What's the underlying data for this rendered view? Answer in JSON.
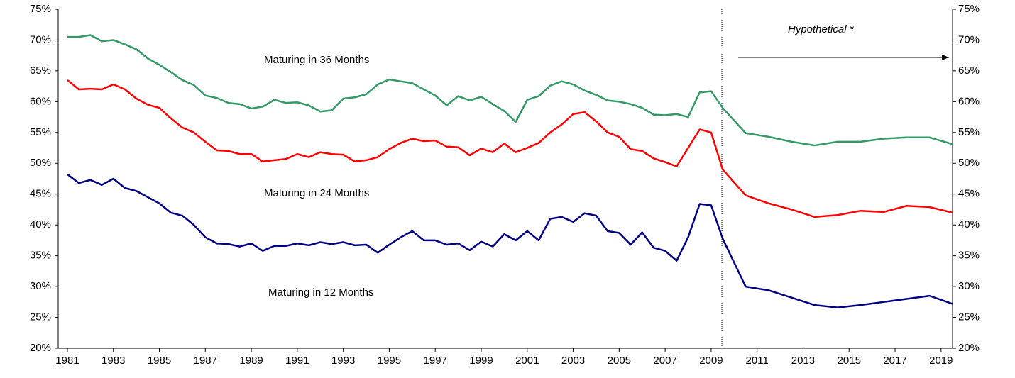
{
  "chart_data": {
    "type": "line",
    "annotations": [
      "Maturing in 36 Months",
      "Maturing in 24 Months",
      "Maturing in 12 Months",
      "Hypothetical *"
    ],
    "x": [
      1981,
      1981.5,
      1982,
      1982.5,
      1983,
      1983.5,
      1984,
      1984.5,
      1985,
      1985.5,
      1986,
      1986.5,
      1987,
      1987.5,
      1988,
      1988.5,
      1989,
      1989.5,
      1990,
      1990.5,
      1991,
      1991.5,
      1992,
      1992.5,
      1993,
      1993.5,
      1994,
      1994.5,
      1995,
      1995.5,
      1996,
      1996.5,
      1997,
      1997.5,
      1998,
      1998.5,
      1999,
      1999.5,
      2000,
      2000.5,
      2001,
      2001.5,
      2002,
      2002.5,
      2003,
      2003.5,
      2004,
      2004.5,
      2005,
      2005.5,
      2006,
      2006.5,
      2007,
      2007.5,
      2008,
      2008.5,
      2009,
      2009.5,
      2010.5,
      2011.5,
      2012.5,
      2013.5,
      2014.5,
      2015.5,
      2016.5,
      2017.5,
      2018.5,
      2019.5
    ],
    "series": [
      {
        "color": "#339966",
        "values": [
          70.5,
          70.5,
          70.8,
          69.8,
          70.0,
          69.3,
          68.5,
          67.0,
          66.0,
          64.8,
          63.5,
          62.7,
          61.0,
          60.6,
          59.8,
          59.6,
          58.9,
          59.2,
          60.3,
          59.8,
          59.9,
          59.4,
          58.4,
          58.6,
          60.5,
          60.7,
          61.2,
          62.8,
          63.6,
          63.3,
          63.0,
          62.0,
          61.0,
          59.4,
          60.9,
          60.2,
          60.8,
          59.6,
          58.5,
          56.7,
          60.3,
          60.9,
          62.6,
          63.3,
          62.8,
          61.8,
          61.1,
          60.2,
          60.0,
          59.6,
          59.0,
          57.9,
          57.8,
          58.0,
          57.5,
          61.5,
          61.7,
          59.0,
          54.9,
          54.3,
          53.5,
          52.9,
          53.5,
          53.5,
          54.0,
          54.2,
          54.2,
          53.1
        ]
      },
      {
        "color": "#ff0000",
        "values": [
          63.5,
          62.0,
          62.1,
          62.0,
          62.8,
          62.0,
          60.5,
          59.5,
          59.0,
          57.3,
          55.8,
          55.0,
          53.5,
          52.1,
          52.0,
          51.5,
          51.5,
          50.3,
          50.5,
          50.7,
          51.5,
          51.0,
          51.8,
          51.5,
          51.4,
          50.3,
          50.5,
          51.0,
          52.3,
          53.3,
          54.0,
          53.6,
          53.7,
          52.7,
          52.6,
          51.3,
          52.4,
          51.8,
          53.2,
          51.8,
          52.5,
          53.3,
          55.0,
          56.3,
          58.0,
          58.3,
          56.8,
          55.0,
          54.3,
          52.3,
          52.0,
          50.8,
          50.2,
          49.5,
          52.5,
          55.5,
          55.0,
          49.0,
          44.8,
          43.5,
          42.5,
          41.3,
          41.6,
          42.3,
          42.1,
          43.1,
          42.9,
          42.0
        ]
      },
      {
        "color": "#000080",
        "values": [
          48.2,
          46.8,
          47.3,
          46.5,
          47.5,
          46.0,
          45.5,
          44.5,
          43.5,
          42.0,
          41.5,
          40.0,
          38.0,
          37.0,
          36.9,
          36.5,
          37.0,
          35.8,
          36.6,
          36.6,
          37.0,
          36.7,
          37.2,
          36.9,
          37.2,
          36.7,
          36.8,
          35.5,
          36.8,
          38.0,
          39.0,
          37.5,
          37.5,
          36.8,
          37.0,
          35.9,
          37.3,
          36.5,
          38.5,
          37.5,
          39.0,
          37.5,
          41.0,
          41.3,
          40.5,
          41.9,
          41.5,
          39.0,
          38.7,
          36.8,
          38.8,
          36.3,
          35.8,
          34.2,
          38.0,
          43.4,
          43.2,
          37.8,
          30.0,
          29.4,
          28.2,
          27.0,
          26.6,
          27.0,
          27.5,
          28.0,
          28.5,
          27.2
        ]
      }
    ],
    "xlim": [
      1980.6,
      2019.5
    ],
    "xticks": [
      1981,
      1983,
      1985,
      1987,
      1989,
      1991,
      1993,
      1995,
      1997,
      1999,
      2001,
      2003,
      2005,
      2007,
      2009,
      2011,
      2013,
      2015,
      2017,
      2019
    ],
    "ylim": [
      20,
      75
    ],
    "yticks": [
      {
        "value": 20,
        "label": "20%"
      },
      {
        "value": 25,
        "label": "25%"
      },
      {
        "value": 30,
        "label": "30%"
      },
      {
        "value": 35,
        "label": "35%"
      },
      {
        "value": 40,
        "label": "40%"
      },
      {
        "value": 45,
        "label": "45%"
      },
      {
        "value": 50,
        "label": "50%"
      },
      {
        "value": 55,
        "label": "55%"
      },
      {
        "value": 60,
        "label": "60%"
      },
      {
        "value": 65,
        "label": "65%"
      },
      {
        "value": 70,
        "label": "70%"
      },
      {
        "value": 75,
        "label": "75%"
      }
    ]
  }
}
